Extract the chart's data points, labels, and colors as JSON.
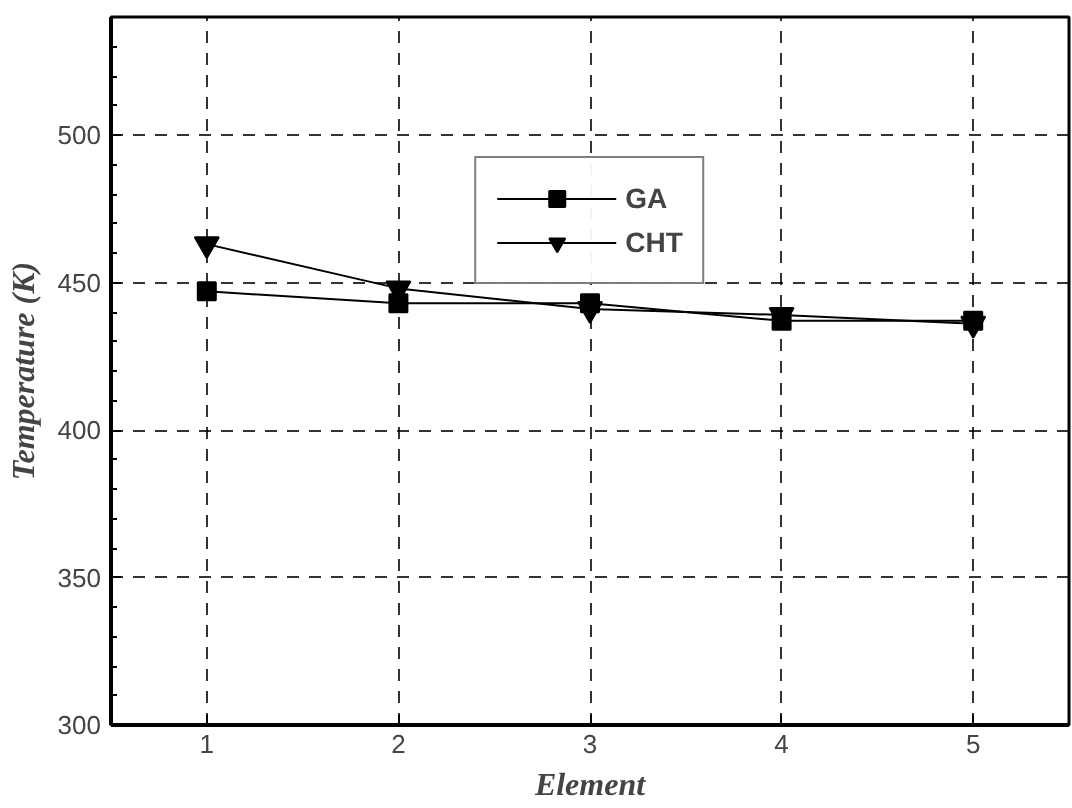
{
  "chart_data": {
    "type": "line",
    "xlabel": "Element",
    "ylabel": "Temperature (K)",
    "x": [
      1,
      2,
      3,
      4,
      5
    ],
    "series": [
      {
        "name": "GA",
        "color": "#000000",
        "marker": "square",
        "values": [
          447,
          443,
          443,
          437,
          437
        ]
      },
      {
        "name": "CHT",
        "color": "#000000",
        "marker": "triangle",
        "values": [
          463,
          448,
          441,
          439,
          436
        ]
      }
    ],
    "xlim": [
      0.5,
      5.5
    ],
    "ylim": [
      300,
      540
    ],
    "xticks": [
      1,
      2,
      3,
      4,
      5
    ],
    "yticks": [
      300,
      350,
      400,
      450,
      500
    ],
    "grid": true,
    "legend": "top",
    "line_style": "solid"
  }
}
